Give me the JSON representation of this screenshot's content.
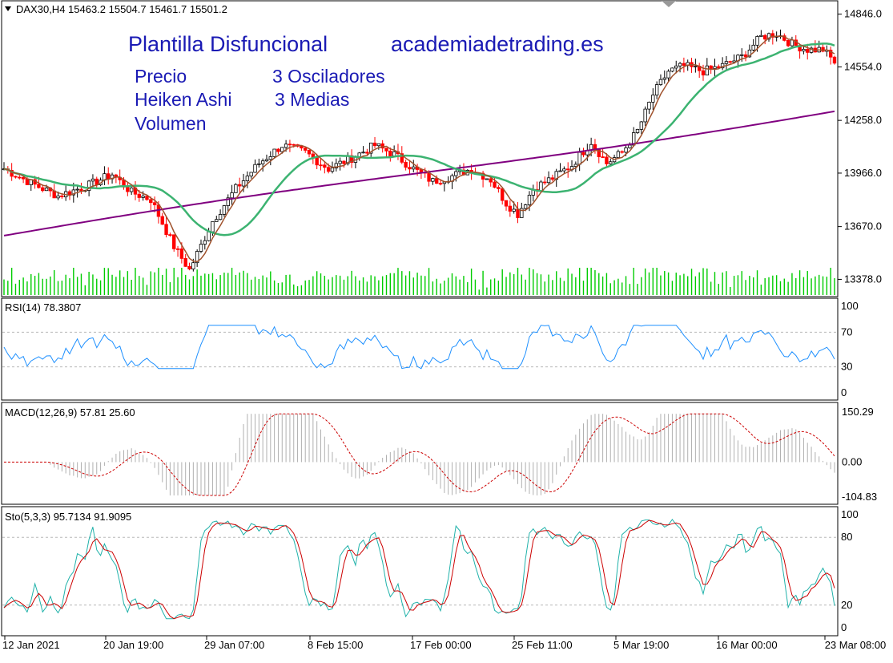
{
  "colors": {
    "background": "#ffffff",
    "frame": "#000000",
    "bull_candle": "#000000",
    "bear_candle": "#ff0000",
    "volume": "#00cc00",
    "ma_fast": "#a0522d",
    "ma_mid": "#3cb371",
    "ma_slow": "#800080",
    "rsi": "#1e90ff",
    "macd_hist": "#b0b0b0",
    "macd_signal": "#cc0000",
    "sto_main": "#20b2aa",
    "sto_signal": "#cc0000",
    "title_text": "#1a1ab4",
    "grid_level": "#b8b8b8"
  },
  "header": {
    "symbol_line": "DAX30,H4  15463.2 15504.7 15461.7 15501.2",
    "title_left": "Plantilla Disfuncional",
    "title_right": "academiadetrading.es",
    "legend_row1_left": "Precio",
    "legend_row1_right": "3 Osciladores",
    "legend_row2_left": "Heiken Ashi",
    "legend_row2_right": "3 Medias",
    "legend_row3_left": "Volumen"
  },
  "x_axis": {
    "labels": [
      "12 Jan 2021",
      "20 Jan 19:00",
      "29 Jan 07:00",
      "8 Feb 15:00",
      "17 Feb 00:00",
      "25 Feb 11:00",
      "5 Mar 19:00",
      "16 Mar 00:00",
      "23 Mar 08:00"
    ]
  },
  "chart_data": [
    {
      "type": "candlestick",
      "panel": "price",
      "symbol": "DAX30,H4",
      "title": "DAX30,H4",
      "last_ohlc": {
        "open": 15463.2,
        "high": 15504.7,
        "low": 15461.7,
        "close": 15501.2
      },
      "y_ticks": [
        14846.0,
        14554.0,
        14258.0,
        13966.0,
        13670.0,
        13378.0
      ],
      "ylim": [
        13300,
        14880
      ],
      "anchors": [
        [
          0,
          13990
        ],
        [
          8,
          13900
        ],
        [
          14,
          13840
        ],
        [
          22,
          13900
        ],
        [
          28,
          13960
        ],
        [
          33,
          13860
        ],
        [
          38,
          13820
        ],
        [
          44,
          13560
        ],
        [
          48,
          13430
        ],
        [
          54,
          13700
        ],
        [
          60,
          13880
        ],
        [
          66,
          14020
        ],
        [
          72,
          14120
        ],
        [
          78,
          14080
        ],
        [
          84,
          13990
        ],
        [
          90,
          14050
        ],
        [
          96,
          14120
        ],
        [
          101,
          14070
        ],
        [
          106,
          13990
        ],
        [
          111,
          13920
        ],
        [
          116,
          13950
        ],
        [
          121,
          13990
        ],
        [
          126,
          13930
        ],
        [
          130,
          13800
        ],
        [
          133,
          13740
        ],
        [
          137,
          13880
        ],
        [
          142,
          13940
        ],
        [
          147,
          14010
        ],
        [
          152,
          14140
        ],
        [
          156,
          14020
        ],
        [
          160,
          14080
        ],
        [
          164,
          14200
        ],
        [
          168,
          14400
        ],
        [
          172,
          14530
        ],
        [
          176,
          14560
        ],
        [
          181,
          14530
        ],
        [
          186,
          14560
        ],
        [
          191,
          14610
        ],
        [
          196,
          14720
        ],
        [
          200,
          14740
        ],
        [
          204,
          14680
        ],
        [
          208,
          14650
        ],
        [
          212,
          14650
        ],
        [
          215,
          14580
        ]
      ],
      "candle_count": 216,
      "ma_periods": [
        5,
        20,
        200
      ]
    },
    {
      "type": "bar",
      "panel": "price",
      "name": "Volumen",
      "values_relative": "proportional to bar range"
    },
    {
      "type": "line",
      "panel": "rsi",
      "name": "RSI(14)",
      "title": "RSI(14)",
      "last_value": 78.3807,
      "y_ticks": [
        100,
        70,
        30,
        0
      ],
      "levels": [
        70,
        30
      ],
      "ylim": [
        0,
        100
      ]
    },
    {
      "type": "bar",
      "panel": "macd",
      "name": "MACD(12,26,9)",
      "title": "MACD(12,26,9)",
      "last_values": [
        57.81,
        25.6
      ],
      "y_ticks": [
        150.29,
        0.0,
        -104.83
      ],
      "ylim": [
        -104.83,
        150.29
      ]
    },
    {
      "type": "line",
      "panel": "stochastic",
      "name": "Sto(5,3,3)",
      "title": "Sto(5,3,3)",
      "last_values": [
        95.7134,
        91.9095
      ],
      "y_ticks": [
        100,
        80,
        20,
        0
      ],
      "levels": [
        80,
        20
      ],
      "ylim": [
        0,
        100
      ]
    }
  ],
  "label_text": {
    "rsi": "RSI(14) 78.3807",
    "macd": "MACD(12,26,9) 57.81 25.60",
    "sto": "Sto(5,3,3) 95.7134 91.9095",
    "price_ticks": [
      "14846.0",
      "14554.0",
      "14258.0",
      "13966.0",
      "13670.0",
      "13378.0"
    ],
    "rsi_ticks": [
      "100",
      "70",
      "30",
      "0"
    ],
    "macd_ticks": [
      "150.29",
      "0.00",
      "-104.83"
    ],
    "sto_ticks": [
      "100",
      "80",
      "20",
      "0"
    ]
  }
}
